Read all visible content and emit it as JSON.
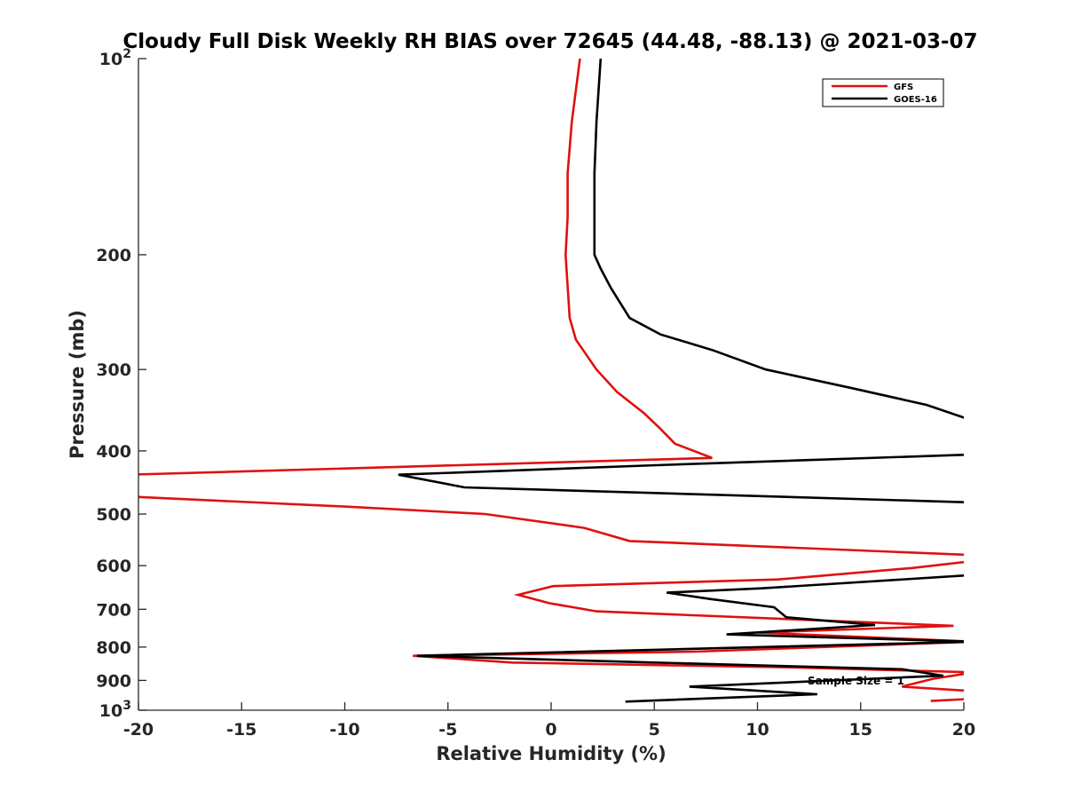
{
  "chart_data": {
    "type": "line",
    "title": "Cloudy Full Disk Weekly RH BIAS over 72645 (44.48, -88.13) @ 2021-03-07",
    "xlabel": "Relative Humidity (%)",
    "ylabel": "Pressure (mb)",
    "xlim": [
      -20,
      20
    ],
    "ylim": [
      100,
      1000
    ],
    "y_scale": "log",
    "y_reversed": true,
    "grid": false,
    "legend_position": "top-right",
    "x_ticks": [
      "-20",
      "-15",
      "-10",
      "-5",
      "0",
      "5",
      "10",
      "15",
      "20"
    ],
    "y_ticks": [
      {
        "value": 100,
        "base": "10",
        "exp": "2"
      },
      {
        "value": 200,
        "label": "200"
      },
      {
        "value": 300,
        "label": "300"
      },
      {
        "value": 400,
        "label": "400"
      },
      {
        "value": 500,
        "label": "500"
      },
      {
        "value": 600,
        "label": "600"
      },
      {
        "value": 700,
        "label": "700"
      },
      {
        "value": 800,
        "label": "800"
      },
      {
        "value": 900,
        "label": "900"
      },
      {
        "value": 1000,
        "base": "10",
        "exp": "3"
      }
    ],
    "annotation": "Sample Size = 1",
    "series": [
      {
        "name": "GFS",
        "color": "#e01010",
        "points": [
          [
            1.4,
            100
          ],
          [
            1.0,
            125
          ],
          [
            0.8,
            150
          ],
          [
            0.8,
            175
          ],
          [
            0.7,
            200
          ],
          [
            0.9,
            250
          ],
          [
            1.2,
            270
          ],
          [
            2.2,
            300
          ],
          [
            3.2,
            325
          ],
          [
            4.5,
            350
          ],
          [
            5.3,
            370
          ],
          [
            6.0,
            390
          ],
          [
            7.8,
            410
          ],
          [
            -20.5,
            435
          ],
          [
            -20.5,
            470
          ],
          [
            -10.0,
            487
          ],
          [
            -3.2,
            500
          ],
          [
            1.6,
            525
          ],
          [
            3.8,
            550
          ],
          [
            20.5,
            578
          ],
          [
            20.5,
            590
          ],
          [
            17.5,
            605
          ],
          [
            11.0,
            630
          ],
          [
            0.1,
            645
          ],
          [
            -1.6,
            665
          ],
          [
            -0.1,
            685
          ],
          [
            2.2,
            705
          ],
          [
            19.5,
            742
          ],
          [
            10.0,
            760
          ],
          [
            20.5,
            785
          ],
          [
            7.0,
            813
          ],
          [
            -6.7,
            825
          ],
          [
            -1.9,
            845
          ],
          [
            12.0,
            860
          ],
          [
            20.5,
            875
          ],
          [
            18.5,
            895
          ],
          [
            17.0,
            920
          ],
          [
            20.5,
            935
          ],
          [
            20.5,
            960
          ],
          [
            18.4,
            968
          ]
        ]
      },
      {
        "name": "GOES-16",
        "color": "#000000",
        "points": [
          [
            2.4,
            100
          ],
          [
            2.2,
            125
          ],
          [
            2.1,
            150
          ],
          [
            2.1,
            175
          ],
          [
            2.1,
            200
          ],
          [
            2.4,
            210
          ],
          [
            2.9,
            225
          ],
          [
            3.8,
            250
          ],
          [
            5.3,
            265
          ],
          [
            7.8,
            280
          ],
          [
            10.4,
            300
          ],
          [
            14.5,
            320
          ],
          [
            18.2,
            340
          ],
          [
            20.5,
            360
          ],
          [
            20.5,
            405
          ],
          [
            5.7,
            420
          ],
          [
            -7.4,
            435
          ],
          [
            -4.2,
            455
          ],
          [
            20.5,
            480
          ],
          [
            20.5,
            620
          ],
          [
            10.2,
            650
          ],
          [
            5.6,
            660
          ],
          [
            7.7,
            675
          ],
          [
            10.8,
            695
          ],
          [
            11.4,
            720
          ],
          [
            15.7,
            740
          ],
          [
            8.5,
            765
          ],
          [
            20.5,
            785
          ],
          [
            -6.5,
            825
          ],
          [
            5.0,
            845
          ],
          [
            17.0,
            865
          ],
          [
            19.0,
            885
          ],
          [
            6.7,
            920
          ],
          [
            12.9,
            945
          ],
          [
            3.6,
            970
          ]
        ]
      }
    ]
  }
}
